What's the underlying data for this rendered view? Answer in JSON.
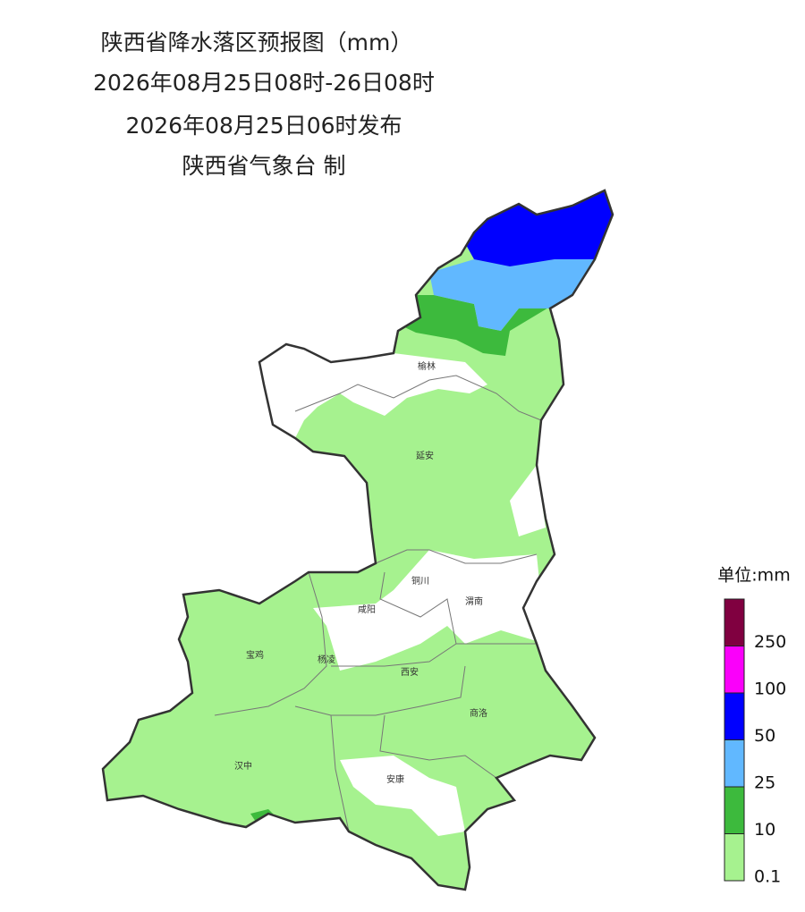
{
  "header": {
    "title": "陕西省降水落区预报图（mm）",
    "period": "2026年08月25日08时-26日08时",
    "issued": "2026年08月25日06时发布",
    "issuer": "陕西省气象台 制"
  },
  "cities": [
    "榆林",
    "延安",
    "铜川",
    "渭南",
    "咸阳",
    "宝鸡",
    "杨凌",
    "西安",
    "商洛",
    "汉中",
    "安康"
  ],
  "legend": {
    "title": "单位:mm",
    "thresholds": [
      0.1,
      10,
      25,
      50,
      100,
      250
    ],
    "colors": [
      "#a6f28f",
      "#3dba3d",
      "#61b8ff",
      "#0000ff",
      "#fa00fa",
      "#800040"
    ]
  }
}
